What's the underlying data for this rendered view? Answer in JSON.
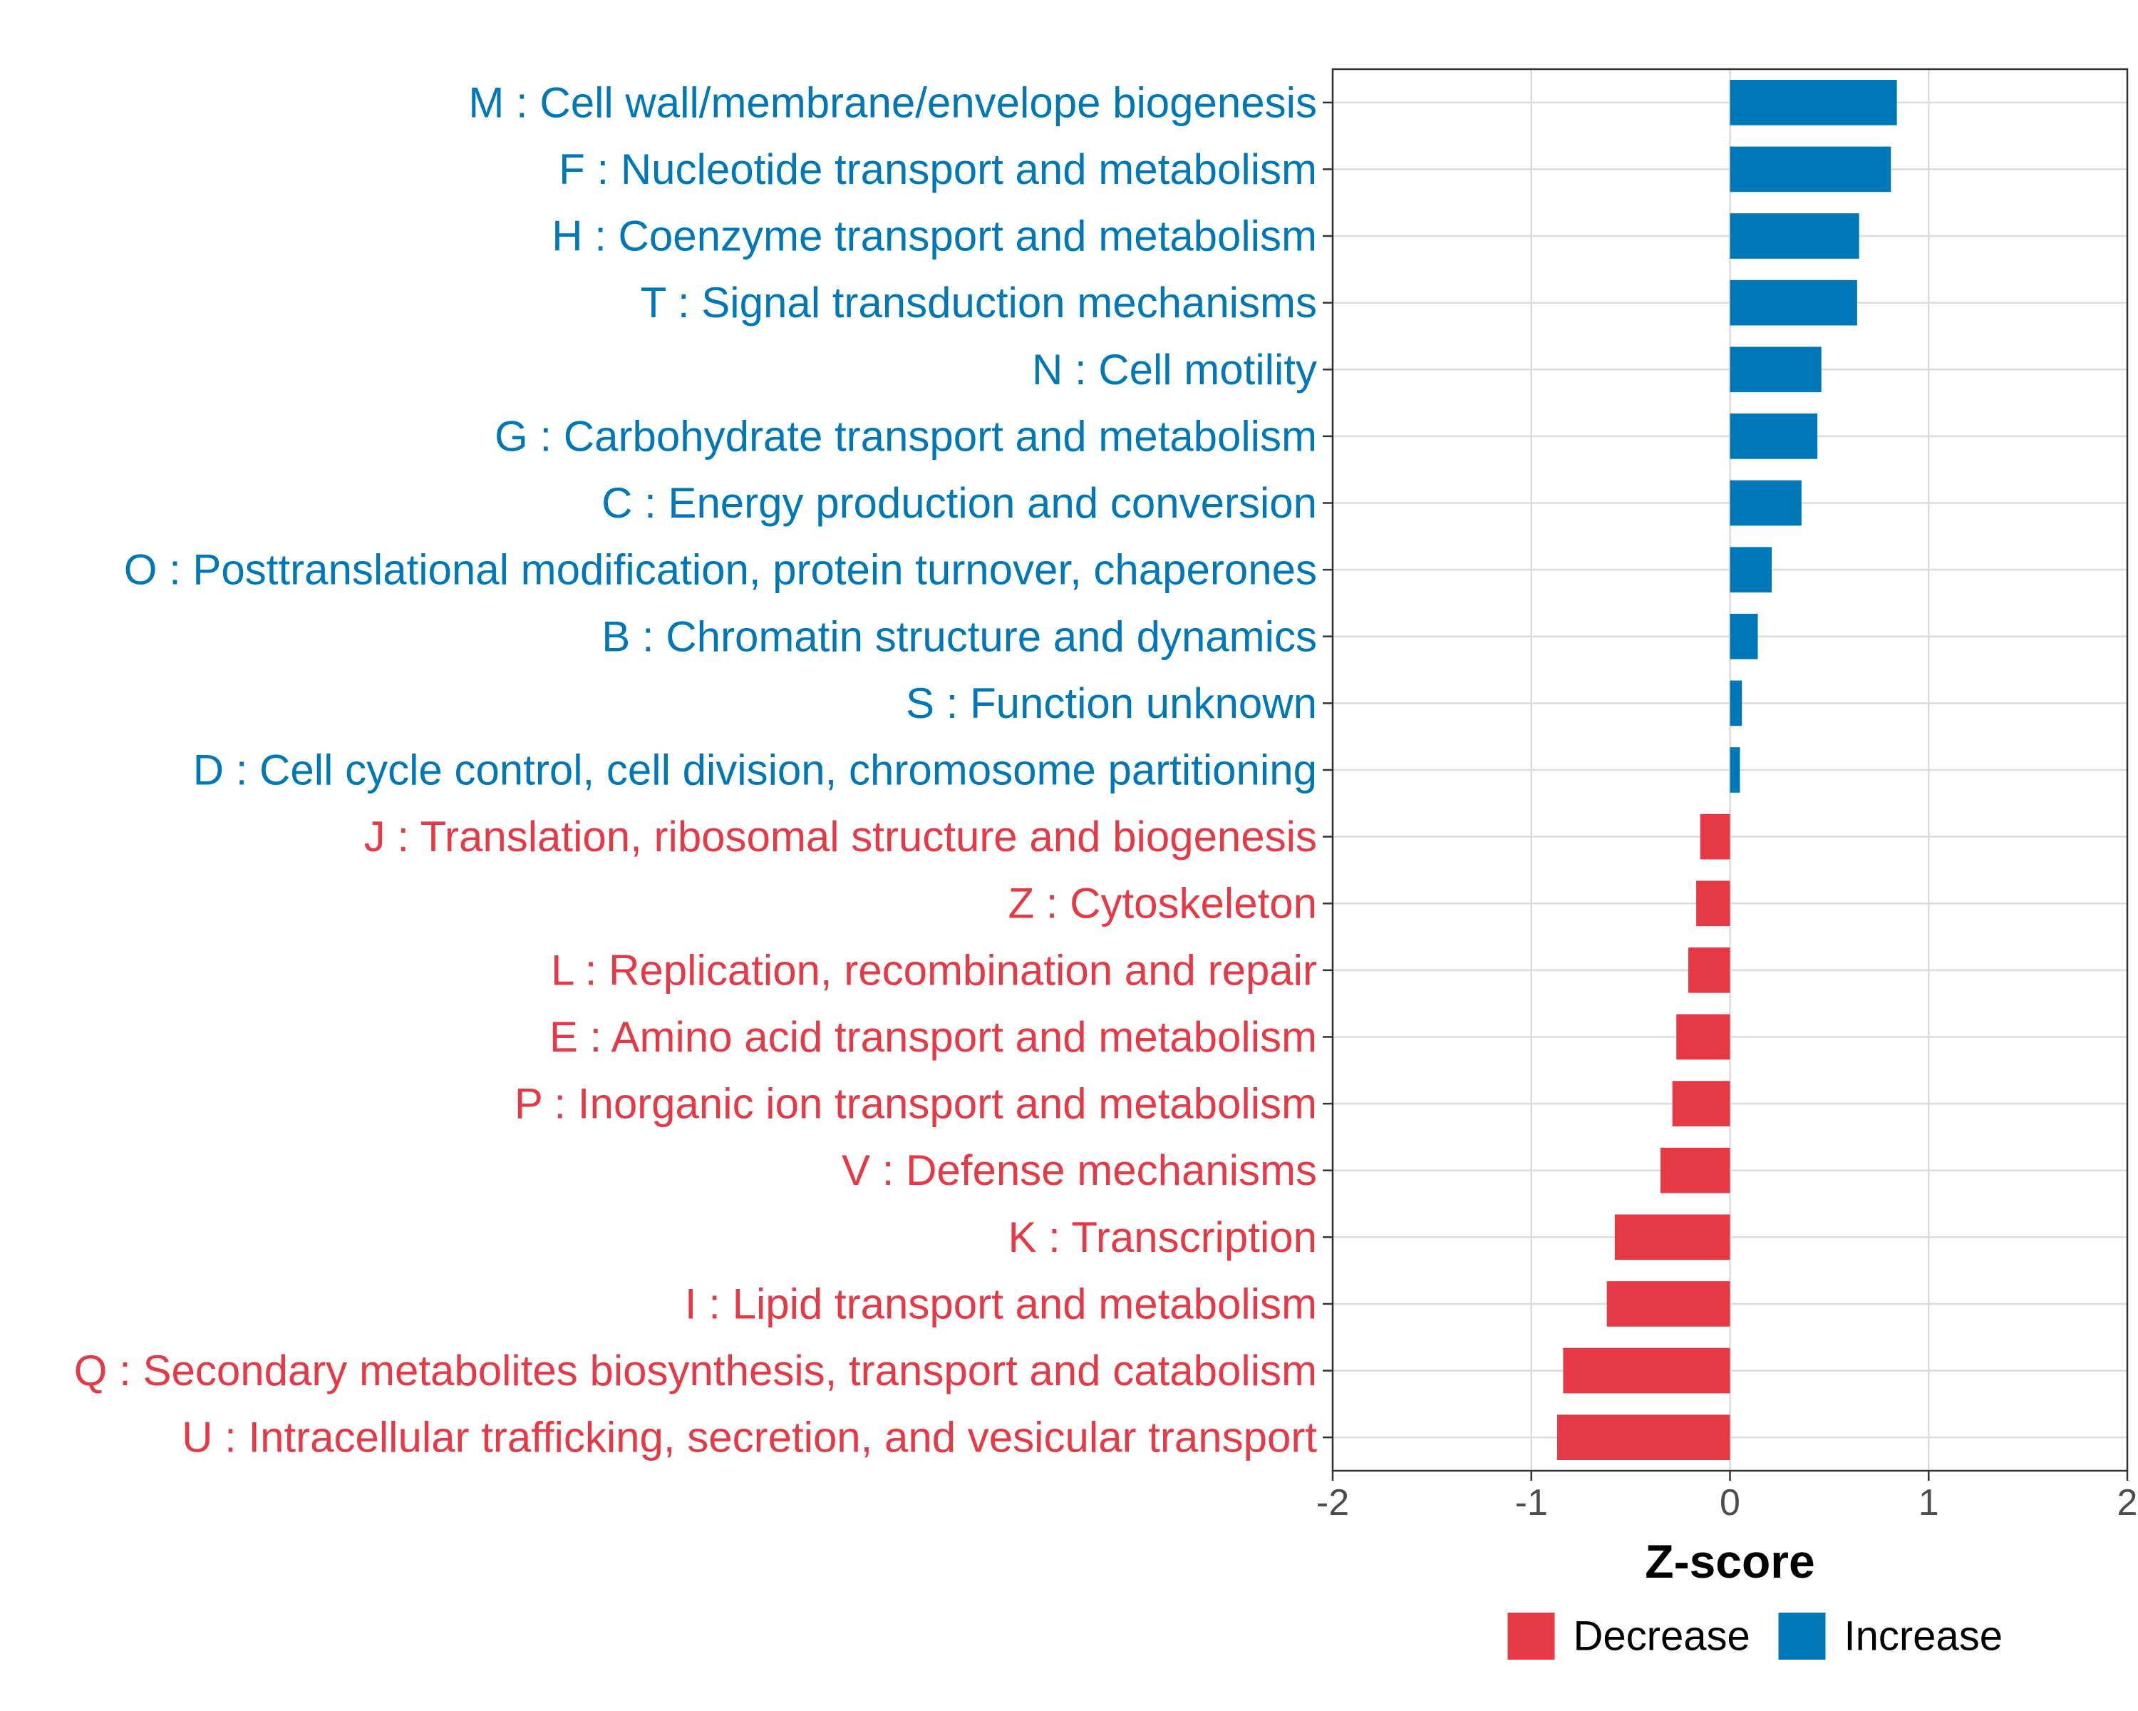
{
  "chart_data": {
    "type": "bar",
    "orientation": "horizontal",
    "title": "",
    "xlabel": "Z-score",
    "ylabel": "",
    "xlim": [
      -2,
      2
    ],
    "xticks": [
      -2,
      -1,
      0,
      1,
      2
    ],
    "xtick_labels": [
      "-2",
      "-1",
      "0",
      "1",
      "2"
    ],
    "grid": true,
    "legend_position": "bottom",
    "legend": [
      {
        "key": "decrease",
        "label": "Decrease",
        "color": "#E63946"
      },
      {
        "key": "increase",
        "label": "Increase",
        "color": "#0077B6"
      }
    ],
    "categories": [
      "M : Cell wall/membrane/envelope biogenesis",
      "F : Nucleotide transport and metabolism",
      "H : Coenzyme transport and metabolism",
      "T : Signal transduction mechanisms",
      "N : Cell motility",
      "G : Carbohydrate transport and metabolism",
      "C : Energy production and conversion",
      "O : Posttranslational modification, protein turnover, chaperones",
      "B : Chromatin structure and dynamics",
      "S : Function unknown",
      "D : Cell cycle control, cell division, chromosome partitioning",
      "J : Translation, ribosomal structure and biogenesis",
      "Z : Cytoskeleton",
      "L : Replication, recombination and repair",
      "E : Amino acid transport and metabolism",
      "P : Inorganic ion transport and metabolism",
      "V : Defense mechanisms",
      "K : Transcription",
      "I : Lipid transport and metabolism",
      "Q : Secondary metabolites biosynthesis, transport and catabolism",
      "U : Intracellular trafficking, secretion, and vesicular transport"
    ],
    "values": [
      0.84,
      0.81,
      0.65,
      0.64,
      0.46,
      0.44,
      0.36,
      0.21,
      0.14,
      0.06,
      0.05,
      -0.15,
      -0.17,
      -0.21,
      -0.27,
      -0.29,
      -0.35,
      -0.58,
      -0.62,
      -0.84,
      -0.87
    ],
    "groups": [
      "increase",
      "increase",
      "increase",
      "increase",
      "increase",
      "increase",
      "increase",
      "increase",
      "increase",
      "increase",
      "increase",
      "decrease",
      "decrease",
      "decrease",
      "decrease",
      "decrease",
      "decrease",
      "decrease",
      "decrease",
      "decrease",
      "decrease"
    ]
  }
}
